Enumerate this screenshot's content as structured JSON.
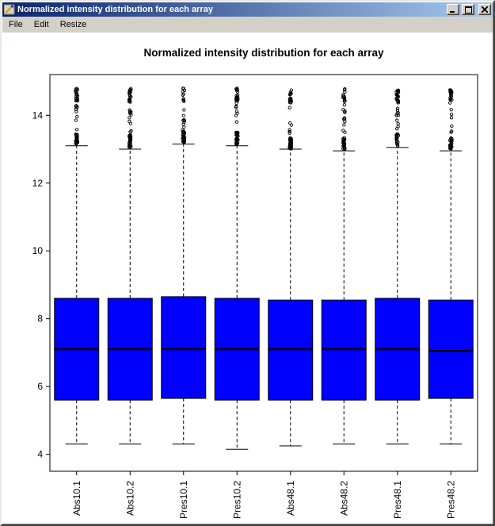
{
  "window": {
    "title": "Normalized intensity distribution for each array"
  },
  "menu": {
    "items": [
      {
        "label": "File"
      },
      {
        "label": "Edit"
      },
      {
        "label": "Resize"
      }
    ]
  },
  "colors": {
    "titlebar_left": "#0a246a",
    "titlebar_right": "#a6caf0",
    "chrome": "#d4d0c8",
    "plot_bg": "#ffffff",
    "box_fill": "#0000ff",
    "box_stroke": "#000000"
  },
  "chart_data": {
    "type": "boxplot",
    "title": "Normalized intensity distribution for each array",
    "categories": [
      "Abs10.1",
      "Abs10.2",
      "Pres10.1",
      "Pres10.2",
      "Abs48.1",
      "Abs48.2",
      "Pres48.1",
      "Pres48.2"
    ],
    "ylim": [
      3.5,
      15.2
    ],
    "yticks": [
      4,
      6,
      8,
      10,
      12,
      14
    ],
    "grid": false,
    "legend": "none",
    "series": [
      {
        "name": "Abs10.1",
        "low": 4.3,
        "q1": 5.6,
        "median": 7.1,
        "q3": 8.6,
        "high": 13.1,
        "outlier_range": [
          13.15,
          14.8
        ],
        "outlier_count": 55
      },
      {
        "name": "Abs10.2",
        "low": 4.3,
        "q1": 5.6,
        "median": 7.1,
        "q3": 8.6,
        "high": 13.0,
        "outlier_range": [
          13.05,
          14.8
        ],
        "outlier_count": 55
      },
      {
        "name": "Pres10.1",
        "low": 4.3,
        "q1": 5.65,
        "median": 7.1,
        "q3": 8.65,
        "high": 13.15,
        "outlier_range": [
          13.2,
          14.8
        ],
        "outlier_count": 50
      },
      {
        "name": "Pres10.2",
        "low": 4.15,
        "q1": 5.6,
        "median": 7.1,
        "q3": 8.6,
        "high": 13.1,
        "outlier_range": [
          13.15,
          14.8
        ],
        "outlier_count": 55
      },
      {
        "name": "Abs48.1",
        "low": 4.25,
        "q1": 5.6,
        "median": 7.1,
        "q3": 8.55,
        "high": 13.0,
        "outlier_range": [
          13.0,
          14.75
        ],
        "outlier_count": 60
      },
      {
        "name": "Abs48.2",
        "low": 4.3,
        "q1": 5.6,
        "median": 7.1,
        "q3": 8.55,
        "high": 12.95,
        "outlier_range": [
          13.0,
          14.8
        ],
        "outlier_count": 55
      },
      {
        "name": "Pres48.1",
        "low": 4.3,
        "q1": 5.6,
        "median": 7.1,
        "q3": 8.6,
        "high": 13.05,
        "outlier_range": [
          13.1,
          14.75
        ],
        "outlier_count": 50
      },
      {
        "name": "Pres48.2",
        "low": 4.3,
        "q1": 5.65,
        "median": 7.05,
        "q3": 8.55,
        "high": 12.95,
        "outlier_range": [
          13.0,
          14.75
        ],
        "outlier_count": 50
      }
    ]
  }
}
